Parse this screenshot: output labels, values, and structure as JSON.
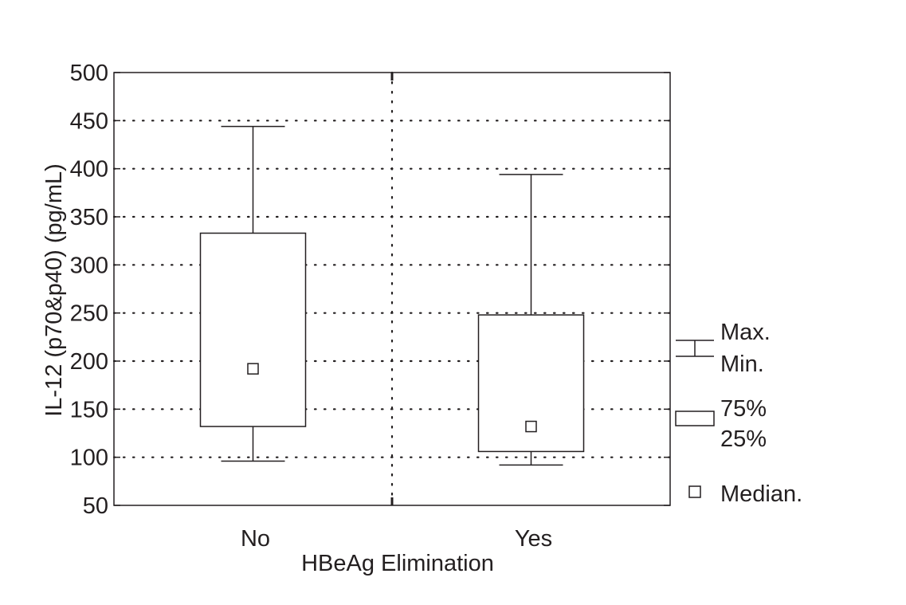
{
  "chart_data": {
    "type": "box",
    "title": "",
    "xlabel": "HBeAg Elimination",
    "ylabel": "IL-12 (p70&p40) (pg/mL)",
    "ylim": [
      50,
      500
    ],
    "yticks": [
      50,
      100,
      150,
      200,
      250,
      300,
      350,
      400,
      450,
      500
    ],
    "grid": true,
    "categories": [
      "No",
      "Yes"
    ],
    "boxes": [
      {
        "category": "No",
        "min": 96,
        "q1": 132,
        "median": 192,
        "q3": 333,
        "max": 444
      },
      {
        "category": "Yes",
        "min": 92,
        "q1": 106,
        "median": 132,
        "q3": 248,
        "max": 394
      }
    ],
    "legend": {
      "placement": "right",
      "whisker_max": "Max.",
      "whisker_min": "Min.",
      "box_upper": "75%",
      "box_lower": "25%",
      "median": "Median."
    }
  }
}
